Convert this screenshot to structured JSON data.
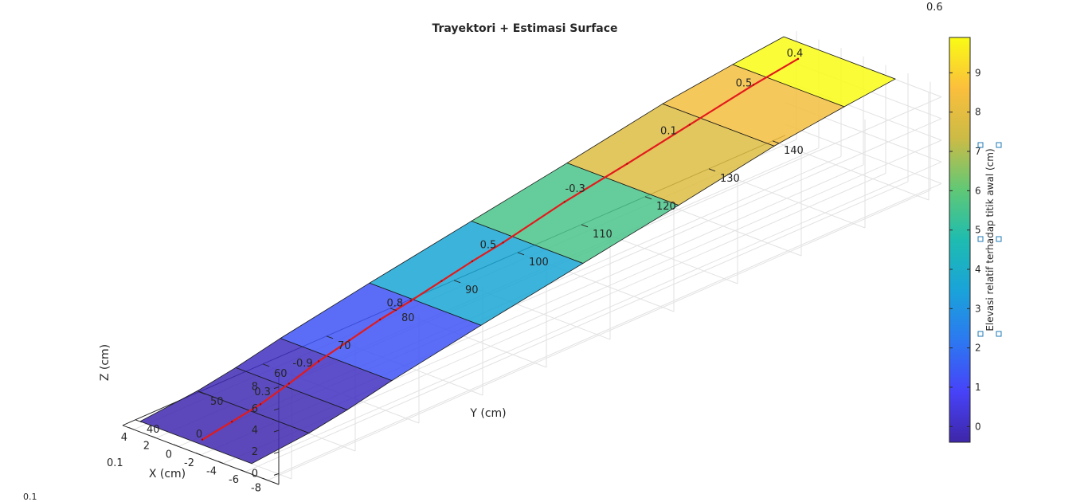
{
  "chart_data": {
    "type": "surface",
    "title": "Trayektori + Estimasi Surface",
    "xlabel": "X (cm)",
    "ylabel": "Y (cm)",
    "zlabel": "Z (cm)",
    "colorbar_label": "Elevasi relatif terhadap titik awal (cm)",
    "x_ticks": [
      "-8",
      "-6",
      "-4",
      "-2",
      "0",
      "2",
      "4"
    ],
    "y_ticks": [
      "40",
      "50",
      "60",
      "70",
      "80",
      "90",
      "100",
      "110",
      "120",
      "130",
      "140"
    ],
    "z_ticks": [
      "0",
      "2",
      "4",
      "6",
      "8"
    ],
    "colorbar_ticks": [
      "0",
      "1",
      "2",
      "3",
      "4",
      "5",
      "6",
      "7",
      "8",
      "9"
    ],
    "xlim": [
      -9,
      5
    ],
    "ylim": [
      38,
      142
    ],
    "zlim": [
      -1,
      9
    ],
    "colorbar_range": [
      -0.4,
      9.9
    ],
    "grid": true,
    "surface_x": [
      -6,
      4
    ],
    "surface_segments": [
      {
        "y0": 39,
        "y1": 48,
        "z0": -0.5,
        "z1": 0.0,
        "level": -0.3
      },
      {
        "y0": 48,
        "y1": 54,
        "z0": 0.0,
        "z1": 0.6,
        "level": -0.2
      },
      {
        "y0": 54,
        "y1": 61,
        "z0": 0.6,
        "z1": 1.5,
        "level": 0.0
      },
      {
        "y0": 61,
        "y1": 75,
        "z0": 1.5,
        "z1": 3.0,
        "level": 1.3
      },
      {
        "y0": 75,
        "y1": 91,
        "z0": 3.0,
        "z1": 4.6,
        "level": 3.6
      },
      {
        "y0": 91,
        "y1": 106,
        "z0": 4.6,
        "z1": 6.1,
        "level": 5.6
      },
      {
        "y0": 106,
        "y1": 121,
        "z0": 6.1,
        "z1": 7.7,
        "level": 7.8
      },
      {
        "y0": 121,
        "y1": 132,
        "z0": 7.7,
        "z1": 8.5,
        "level": 8.4
      },
      {
        "y0": 132,
        "y1": 140,
        "z0": 8.5,
        "z1": 9.0,
        "level": 9.9
      }
    ],
    "trajectory": {
      "x": [
        -1.0,
        -0.8,
        -0.5,
        -0.2,
        0.0,
        0.1,
        0.2,
        0.3,
        0.4,
        0.5,
        0.6,
        0.8,
        0.9,
        1.0,
        1.0,
        1.0
      ],
      "y": [
        40,
        45,
        50,
        55,
        60,
        65,
        70,
        75,
        80,
        85,
        90,
        100,
        110,
        120,
        130,
        137
      ],
      "z": [
        -0.5,
        -0.2,
        0.0,
        0.5,
        1.2,
        1.8,
        2.4,
        2.8,
        3.3,
        3.8,
        4.2,
        5.3,
        6.2,
        7.2,
        8.3,
        8.9
      ]
    },
    "annotations": [
      {
        "text": "0",
        "x": -1.0,
        "y": 40,
        "z": -0.5
      },
      {
        "text": "0.3",
        "x": -0.4,
        "y": 51,
        "z": 0.3
      },
      {
        "text": "-0.9",
        "x": 0.0,
        "y": 58,
        "z": 1.0
      },
      {
        "text": "0.8",
        "x": 0.3,
        "y": 73,
        "z": 2.6
      },
      {
        "text": "0.5",
        "x": 0.5,
        "y": 88,
        "z": 4.0
      },
      {
        "text": "-0.3",
        "x": 0.7,
        "y": 102,
        "z": 5.5
      },
      {
        "text": "0.1",
        "x": 0.9,
        "y": 117,
        "z": 6.9
      },
      {
        "text": "0.5",
        "x": 1.0,
        "y": 129,
        "z": 8.2
      },
      {
        "text": "0.4",
        "x": 1.0,
        "y": 137,
        "z": 8.9
      }
    ],
    "corner_labels": [
      "0.6",
      "0.1",
      "0.1"
    ]
  }
}
